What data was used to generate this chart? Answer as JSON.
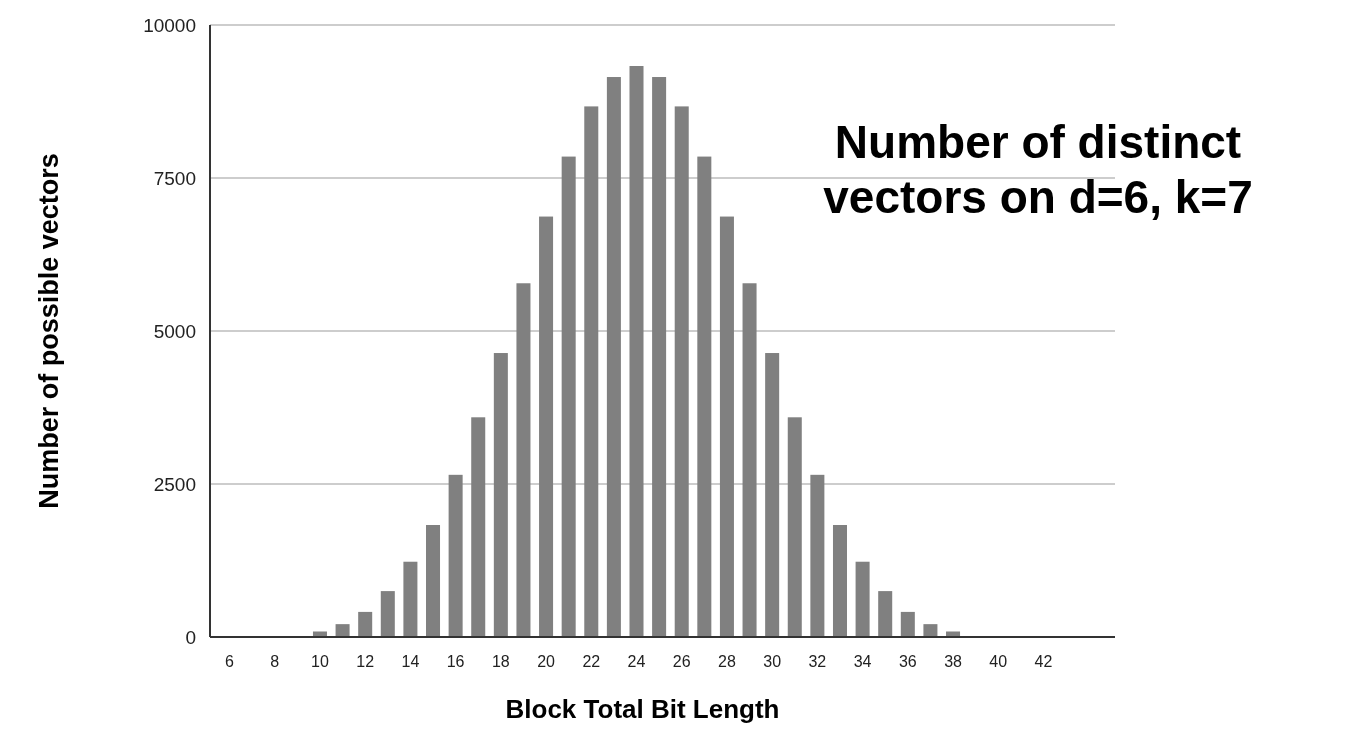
{
  "chart_data": {
    "type": "bar",
    "title": "Number of distinct vectors on d=6, k=7",
    "xlabel": "Block Total Bit Length",
    "ylabel": "Number of possible vectors",
    "categories": [
      "6",
      null,
      "8",
      null,
      "10",
      null,
      "12",
      null,
      "14",
      null,
      "16",
      null,
      "18",
      null,
      "20",
      null,
      "22",
      null,
      "24",
      null,
      "26",
      null,
      "28",
      null,
      "30",
      null,
      "32",
      null,
      "34",
      null,
      "36",
      null,
      "38",
      null,
      "40",
      null,
      "42"
    ],
    "values": [
      0,
      0,
      0,
      0,
      90,
      210,
      410,
      750,
      1230,
      1830,
      2650,
      3590,
      4640,
      5780,
      6870,
      7850,
      8670,
      9150,
      9330,
      9150,
      8670,
      7850,
      6870,
      5780,
      4640,
      3590,
      2650,
      1830,
      1230,
      750,
      410,
      210,
      90,
      0,
      0,
      0,
      0
    ],
    "color": "#808080",
    "ylim": [
      0,
      10000
    ],
    "yticks": [
      0,
      2500,
      5000,
      7500,
      10000
    ],
    "grid": "y"
  }
}
